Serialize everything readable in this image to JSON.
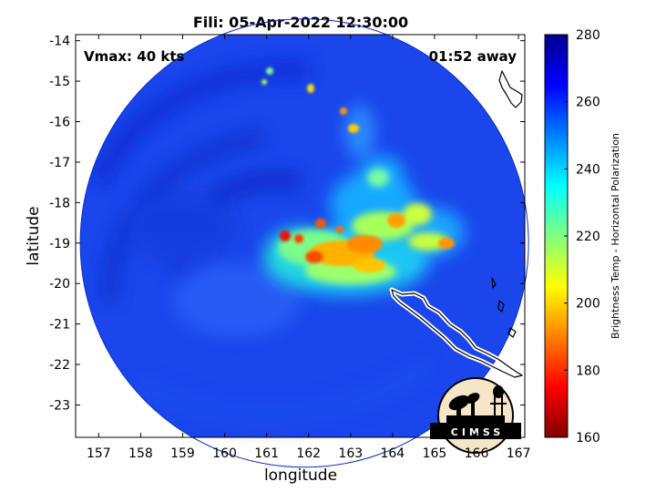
{
  "title": "Fili: 05-Apr-2022 12:30:00",
  "annotations": {
    "vmax": "Vmax: 40 kts",
    "away": "01:52 away"
  },
  "logo": {
    "text": "CIMSS"
  },
  "map": {
    "xlabel": "longitude",
    "ylabel": "latitude",
    "xlim": [
      156.45,
      167.15
    ],
    "ylim": [
      -23.8,
      -13.85
    ],
    "xticks": [
      157,
      158,
      159,
      160,
      161,
      162,
      163,
      164,
      165,
      166,
      167
    ],
    "yticks": [
      -14,
      -15,
      -16,
      -17,
      -18,
      -19,
      -20,
      -21,
      -22,
      -23
    ],
    "swath_center": [
      161.9,
      -19.0
    ],
    "storm_center": [
      162.6,
      -19.1
    ]
  },
  "colorbar": {
    "label": "Brightness Temp - Horizontal Polarization",
    "min": 160,
    "max": 280,
    "ticks": [
      160,
      180,
      200,
      220,
      240,
      260,
      280
    ],
    "colormap": [
      "#800000",
      "#ff0000",
      "#ff8000",
      "#ffff00",
      "#80ff80",
      "#00ffff",
      "#0080ff",
      "#0000ff",
      "#00008f"
    ]
  },
  "chart_data": {
    "type": "heatmap",
    "title": "Fili: 05-Apr-2022 12:30:00",
    "xlabel": "longitude",
    "ylabel": "latitude",
    "xlim": [
      156.45,
      167.15
    ],
    "ylim": [
      -23.8,
      -13.85
    ],
    "color_label": "Brightness Temp - Horizontal Polarization",
    "color_range": [
      160,
      280
    ],
    "background_value": 262,
    "features": [
      {
        "lon": 162.6,
        "lat": -19.1,
        "value": 190
      },
      {
        "lon": 163.2,
        "lat": -18.6,
        "value": 215
      },
      {
        "lon": 164.5,
        "lat": -18.5,
        "value": 225
      },
      {
        "lon": 163.3,
        "lat": -16.6,
        "value": 240
      }
    ]
  }
}
